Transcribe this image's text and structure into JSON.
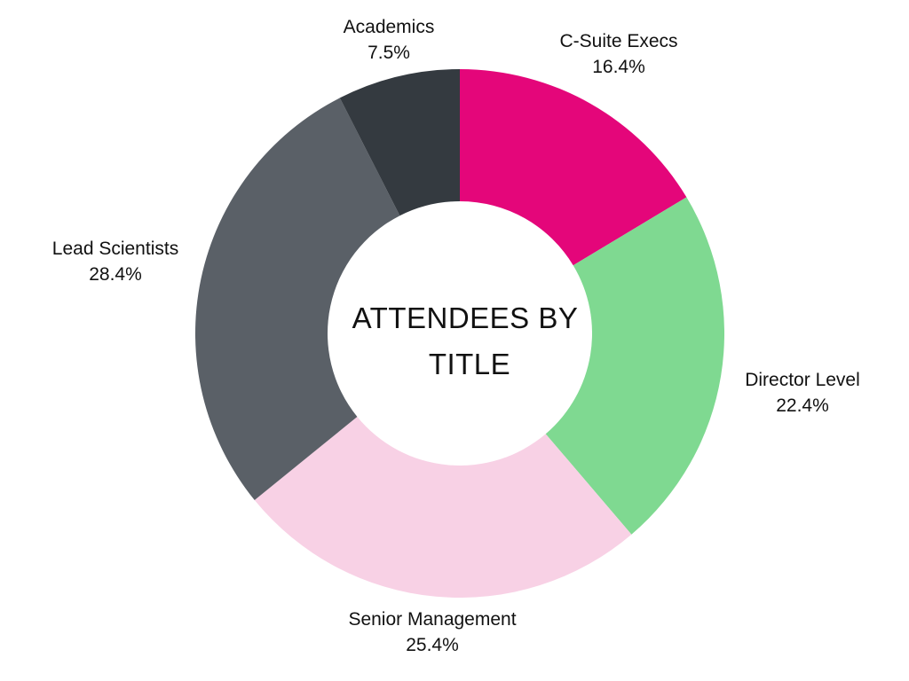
{
  "chart_data": {
    "type": "pie",
    "variant": "donut",
    "title": "ATTENDEES BY TITLE",
    "title_lines": [
      "ATTENDEES BY",
      "TITLE"
    ],
    "start": "top, clockwise",
    "slices": [
      {
        "label": "C-Suite Execs",
        "value": 16.4,
        "value_label": "16.4%",
        "color": "#e4067a"
      },
      {
        "label": "Director Level",
        "value": 22.4,
        "value_label": "22.4%",
        "color": "#7fd991"
      },
      {
        "label": "Senior Management",
        "value": 25.4,
        "value_label": "25.4%",
        "color": "#f8d1e5"
      },
      {
        "label": "Lead Scientists",
        "value": 28.4,
        "value_label": "28.4%",
        "color": "#5a6067"
      },
      {
        "label": "Academics",
        "value": 7.5,
        "value_label": "7.5%",
        "color": "#343a40"
      }
    ]
  }
}
